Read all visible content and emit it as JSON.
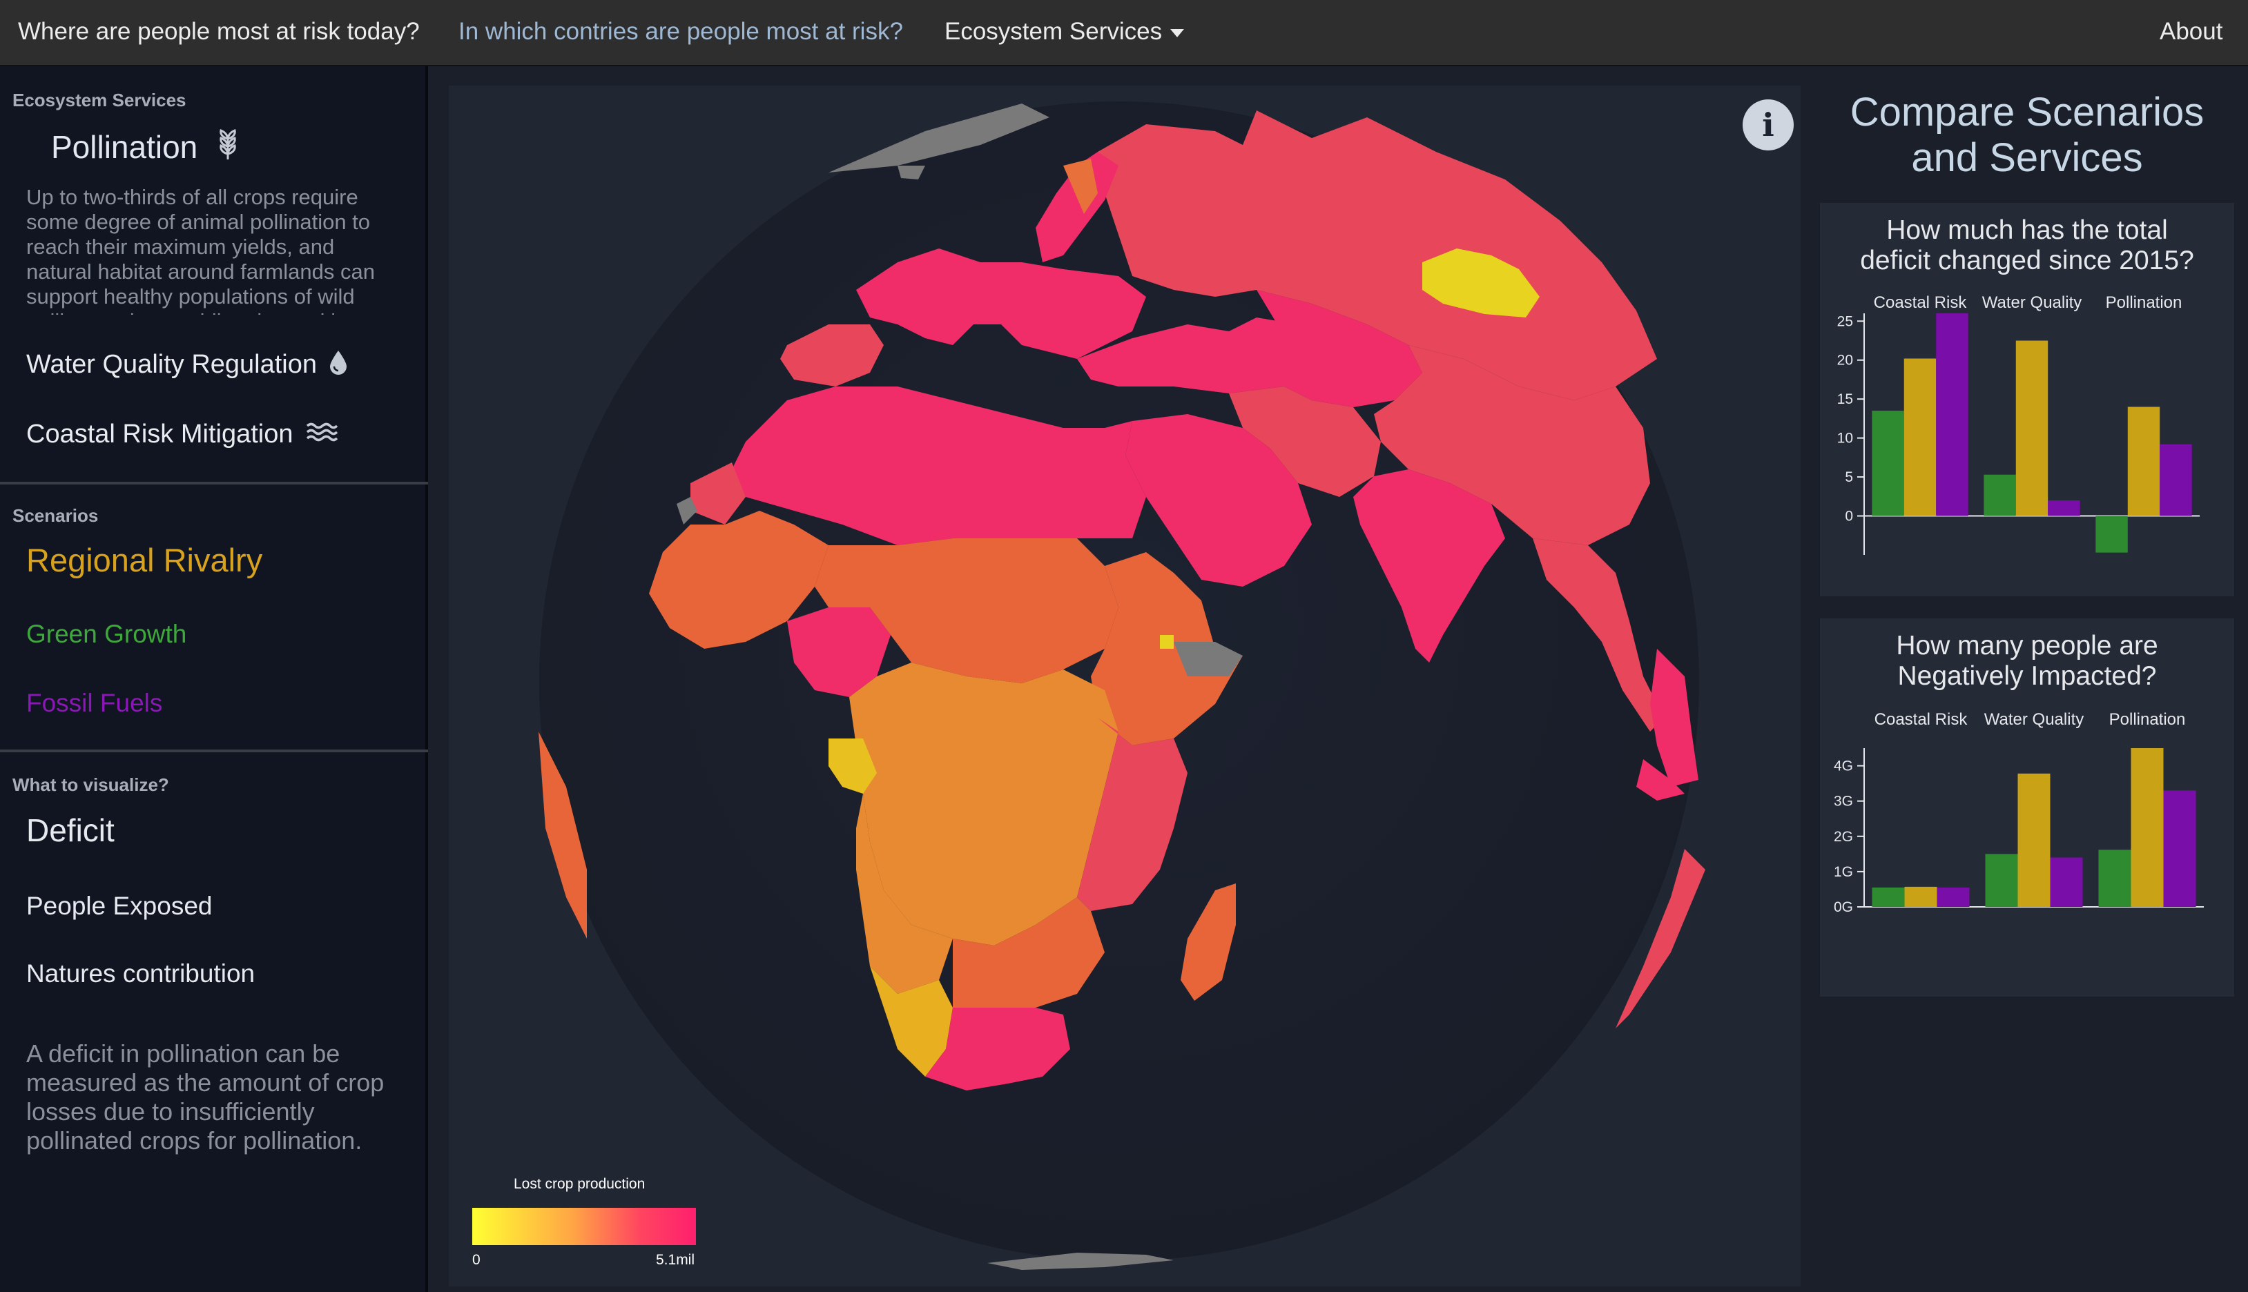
{
  "nav": {
    "risk_today": "Where are people most at risk today?",
    "countries": "In which contries are people most at risk?",
    "ecosystem_services": "Ecosystem Services",
    "about": "About"
  },
  "sidebar": {
    "ecosystem_label": "Ecosystem Services",
    "services": {
      "pollination": "Pollination",
      "pollination_desc": "Up to two-thirds of all crops require some degree of animal pollination to reach their maximum yields, and natural habitat around farmlands can support healthy populations of wild pollinators by providing them with",
      "water": "Water Quality Regulation",
      "coastal": "Coastal Risk Mitigation"
    },
    "scenarios_label": "Scenarios",
    "scenarios": {
      "regional": "Regional Rivalry",
      "green": "Green Growth",
      "fossil": "Fossil Fuels"
    },
    "visualize_label": "What to visualize?",
    "visualize": {
      "deficit": "Deficit",
      "people": "People Exposed",
      "natures": "Natures contribution"
    },
    "explanation": "A deficit in pollination can be measured as the amount of crop losses due to insufficiently pollinated crops for pollination."
  },
  "legend": {
    "title": "Lost crop production",
    "min": "0",
    "max": "5.1mil"
  },
  "right": {
    "title_line1": "Compare Scenarios",
    "title_line2": "and Services"
  },
  "colors": {
    "green": "#2e8b2f",
    "gold": "#c9a216",
    "purple": "#7a0ea8",
    "regional": "#d8a21c",
    "green_text": "#3fa83c",
    "fossil_text": "#8a17b6"
  },
  "icons": {
    "pollination": "wheat-icon",
    "water": "droplet-icon",
    "coastal": "waves-icon",
    "info": "info-icon"
  },
  "chart_data": [
    {
      "type": "bar",
      "title_line1": "How much has the total",
      "title_line2": "deficit changed since 2015?",
      "categories": [
        "Coastal Risk",
        "Water Quality",
        "Pollination"
      ],
      "series": [
        {
          "values": [
            13.5,
            5.3,
            -4.7
          ]
        },
        {
          "values": [
            20.2,
            22.5,
            14.0
          ]
        },
        {
          "values": [
            26.0,
            2.0,
            9.2
          ]
        }
      ],
      "ylim": [
        -5,
        26
      ],
      "yticks": [
        "25",
        "20",
        "15",
        "10",
        "5",
        "0"
      ],
      "ytick_values": [
        25,
        20,
        15,
        10,
        5,
        0
      ]
    },
    {
      "type": "bar",
      "title_line1": "How many people are",
      "title_line2": "Negatively Impacted?",
      "categories": [
        "Coastal Risk",
        "Water Quality",
        "Pollination"
      ],
      "series": [
        {
          "values": [
            0.55,
            1.5,
            1.62
          ]
        },
        {
          "values": [
            0.57,
            3.78,
            4.5
          ]
        },
        {
          "values": [
            0.55,
            1.4,
            3.3
          ]
        }
      ],
      "ylim": [
        0,
        4.5
      ],
      "yticks": [
        "4G",
        "3G",
        "2G",
        "1G",
        "0G"
      ],
      "ytick_values": [
        4,
        3,
        2,
        1,
        0
      ]
    }
  ]
}
